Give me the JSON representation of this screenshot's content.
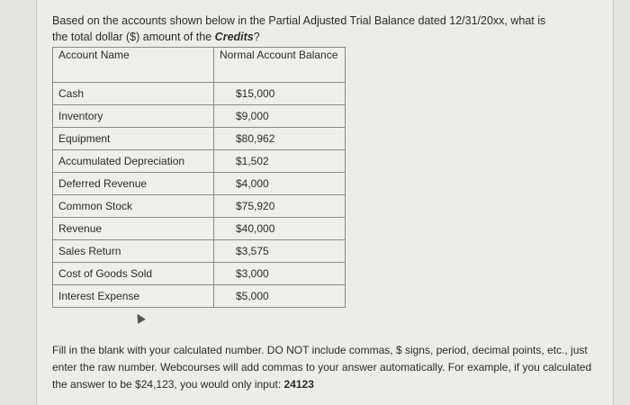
{
  "question": {
    "text": "Based on the accounts shown below in the Partial Adjusted Trial Balance dated 12/31/20xx, what is the total dollar ($) amount of the ",
    "emphasis": "Credits",
    "end": "?"
  },
  "table": {
    "headers": [
      "Account Name",
      "Normal Account Balance"
    ],
    "rows": [
      {
        "name": "Cash",
        "balance": "$15,000"
      },
      {
        "name": "Inventory",
        "balance": "$9,000"
      },
      {
        "name": "Equipment",
        "balance": "$80,962"
      },
      {
        "name": "Accumulated Depreciation",
        "balance": "$1,502"
      },
      {
        "name": "Deferred Revenue",
        "balance": "$4,000"
      },
      {
        "name": "Common Stock",
        "balance": "$75,920"
      },
      {
        "name": "Revenue",
        "balance": "$40,000"
      },
      {
        "name": "Sales Return",
        "balance": "$3,575"
      },
      {
        "name": "Cost of Goods Sold",
        "balance": "$3,000"
      },
      {
        "name": "Interest Expense",
        "balance": "$5,000"
      }
    ]
  },
  "instructions": {
    "text": "Fill in the blank with your calculated number. DO NOT include commas, $ signs, period, decimal points, etc., just enter the raw number. Webcourses will add commas to your answer automatically. For example, if you calculated the answer to be $24,123, you would only input: ",
    "example": "24123"
  }
}
